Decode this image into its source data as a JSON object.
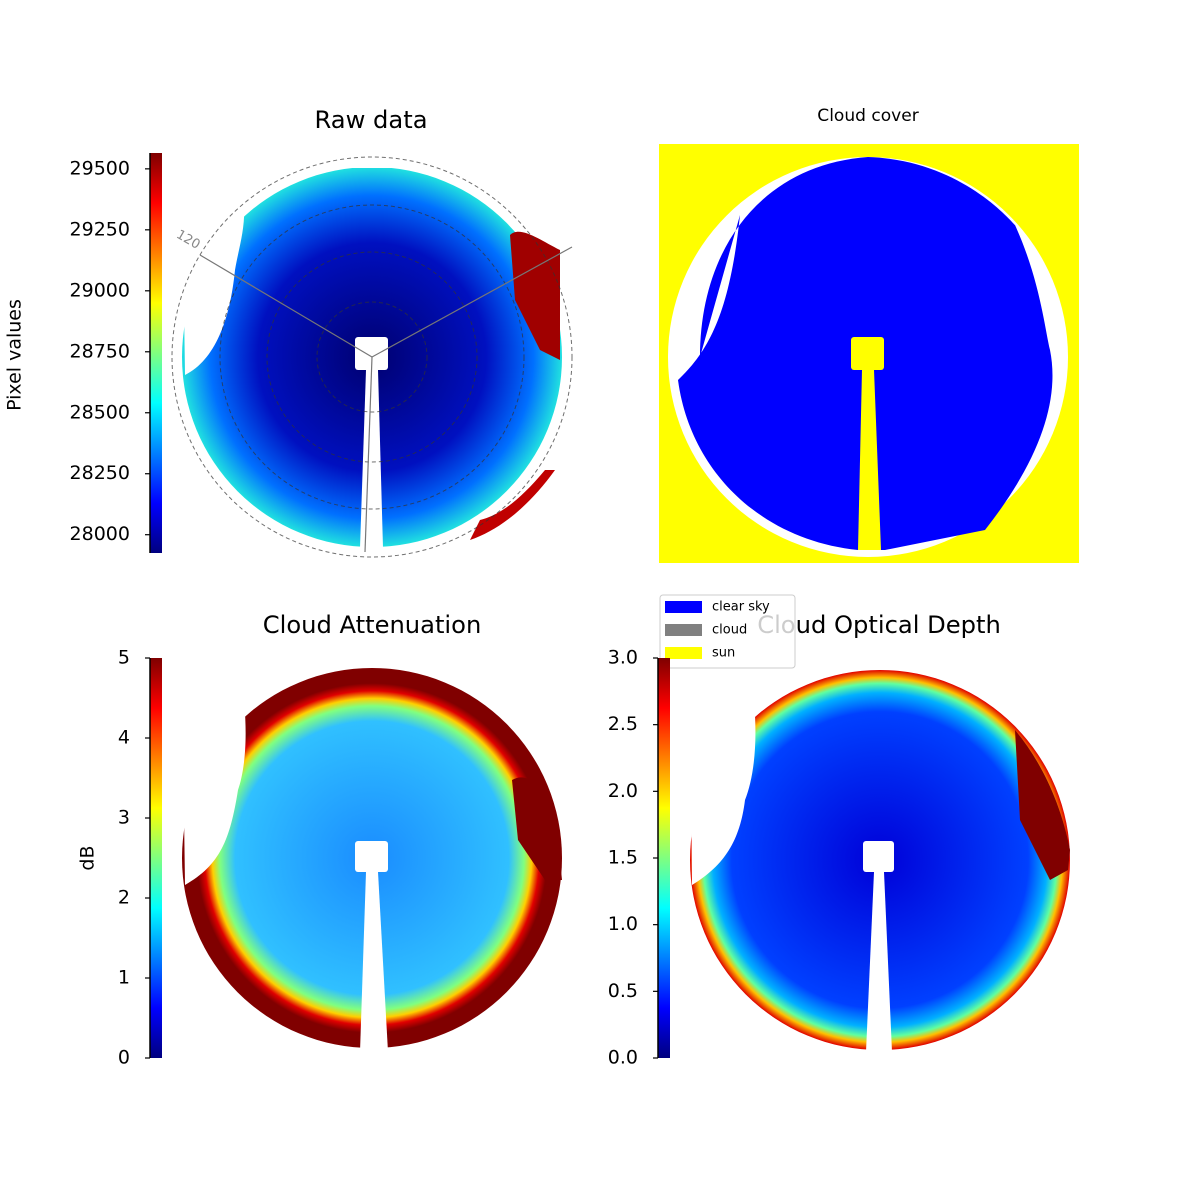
{
  "chart_data": [
    {
      "type": "image",
      "title": "Raw data",
      "colorbar_label": "Pixel values",
      "annotation": "120",
      "ylim": [
        27925,
        29565
      ],
      "yticks": [
        28000,
        28250,
        28500,
        28750,
        29000,
        29250,
        29500
      ],
      "colormap": "jet"
    },
    {
      "type": "image",
      "title": "Cloud cover",
      "legend": [
        {
          "name": "clear sky",
          "color": "#0000ff"
        },
        {
          "name": "cloud",
          "color": "#808080"
        },
        {
          "name": "sun",
          "color": "#ffff00"
        }
      ]
    },
    {
      "type": "image",
      "title": "Cloud Attenuation",
      "colorbar_label": "dB",
      "ylim": [
        0,
        5
      ],
      "yticks": [
        0,
        1,
        2,
        3,
        4,
        5
      ],
      "colormap": "jet"
    },
    {
      "type": "image",
      "title": "Cloud Optical Depth",
      "ylim": [
        0,
        3
      ],
      "yticks": [
        {
          "value": 0,
          "label": "0.0"
        },
        {
          "value": 0.5,
          "label": "0.5"
        },
        {
          "value": 1,
          "label": "1.0"
        },
        {
          "value": 1.5,
          "label": "1.5"
        },
        {
          "value": 2,
          "label": "2.0"
        },
        {
          "value": 2.5,
          "label": "2.5"
        },
        {
          "value": 3,
          "label": "3.0"
        }
      ],
      "colormap": "jet"
    }
  ]
}
